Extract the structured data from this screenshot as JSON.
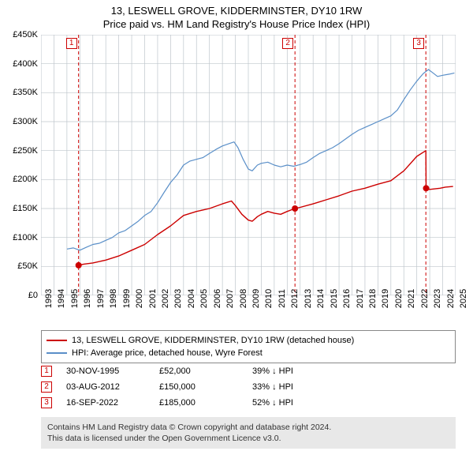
{
  "title": {
    "line1": "13, LESWELL GROVE, KIDDERMINSTER, DY10 1RW",
    "line2": "Price paid vs. HM Land Registry's House Price Index (HPI)",
    "fontsize": 13,
    "color": "#000000"
  },
  "chart": {
    "type": "line",
    "background_color": "#ffffff",
    "grid_color": "#bfc6cc",
    "axis_color": "#000000",
    "tick_fontsize": 11,
    "x": {
      "min": 1993,
      "max": 2025,
      "step": 1
    },
    "y": {
      "min": 0,
      "max": 450000,
      "step": 50000,
      "prefix": "£",
      "suffix_k": "K"
    },
    "markers_on_plot": [
      {
        "n": "1",
        "year": 1995.9,
        "color": "#cc0000"
      },
      {
        "n": "2",
        "year": 2012.6,
        "color": "#cc0000"
      },
      {
        "n": "3",
        "year": 2022.7,
        "color": "#cc0000"
      }
    ],
    "vlines": [
      {
        "year": 1995.9,
        "color": "#cc0000",
        "dash": "4,3",
        "width": 1
      },
      {
        "year": 2012.6,
        "color": "#cc0000",
        "dash": "4,3",
        "width": 1
      },
      {
        "year": 2022.7,
        "color": "#cc0000",
        "dash": "4,3",
        "width": 1
      }
    ],
    "series": [
      {
        "name": "13, LESWELL GROVE, KIDDERMINSTER, DY10 1RW (detached house)",
        "color": "#cc0000",
        "width": 1.4,
        "points": [
          [
            1995.9,
            52000
          ],
          [
            1996.3,
            54000
          ],
          [
            1997,
            56000
          ],
          [
            1998,
            61000
          ],
          [
            1999,
            68000
          ],
          [
            2000,
            78000
          ],
          [
            2001,
            88000
          ],
          [
            2002,
            105000
          ],
          [
            2003,
            120000
          ],
          [
            2004,
            138000
          ],
          [
            2005,
            145000
          ],
          [
            2006,
            150000
          ],
          [
            2007,
            158000
          ],
          [
            2007.7,
            163000
          ],
          [
            2008,
            155000
          ],
          [
            2008.5,
            140000
          ],
          [
            2009,
            130000
          ],
          [
            2009.3,
            128000
          ],
          [
            2009.7,
            136000
          ],
          [
            2010,
            140000
          ],
          [
            2010.5,
            145000
          ],
          [
            2011,
            142000
          ],
          [
            2011.5,
            140000
          ],
          [
            2012,
            145000
          ],
          [
            2012.6,
            150000
          ],
          [
            2013,
            152000
          ],
          [
            2014,
            158000
          ],
          [
            2015,
            165000
          ],
          [
            2016,
            172000
          ],
          [
            2017,
            180000
          ],
          [
            2018,
            185000
          ],
          [
            2019,
            192000
          ],
          [
            2020,
            198000
          ],
          [
            2021,
            215000
          ],
          [
            2022,
            240000
          ],
          [
            2022.7,
            250000
          ],
          [
            2022.72,
            185000
          ],
          [
            2023,
            183000
          ],
          [
            2023.8,
            185000
          ],
          [
            2024.2,
            187000
          ],
          [
            2024.8,
            188000
          ]
        ],
        "dots": [
          {
            "year": 1995.9,
            "value": 52000
          },
          {
            "year": 2012.6,
            "value": 150000
          },
          {
            "year": 2022.72,
            "value": 185000
          }
        ],
        "dot_radius": 4
      },
      {
        "name": "HPI: Average price, detached house, Wyre Forest",
        "color": "#5a8fc8",
        "width": 1.2,
        "points": [
          [
            1995,
            80000
          ],
          [
            1995.5,
            82000
          ],
          [
            1996,
            78000
          ],
          [
            1996.5,
            83000
          ],
          [
            1997,
            88000
          ],
          [
            1997.5,
            90000
          ],
          [
            1998,
            95000
          ],
          [
            1998.5,
            100000
          ],
          [
            1999,
            108000
          ],
          [
            1999.5,
            112000
          ],
          [
            2000,
            120000
          ],
          [
            2000.5,
            128000
          ],
          [
            2001,
            138000
          ],
          [
            2001.5,
            145000
          ],
          [
            2002,
            160000
          ],
          [
            2002.5,
            178000
          ],
          [
            2003,
            195000
          ],
          [
            2003.5,
            208000
          ],
          [
            2004,
            225000
          ],
          [
            2004.5,
            232000
          ],
          [
            2005,
            235000
          ],
          [
            2005.5,
            238000
          ],
          [
            2006,
            245000
          ],
          [
            2006.5,
            252000
          ],
          [
            2007,
            258000
          ],
          [
            2007.5,
            262000
          ],
          [
            2007.9,
            265000
          ],
          [
            2008.2,
            255000
          ],
          [
            2008.6,
            235000
          ],
          [
            2009,
            218000
          ],
          [
            2009.3,
            215000
          ],
          [
            2009.7,
            225000
          ],
          [
            2010,
            228000
          ],
          [
            2010.5,
            230000
          ],
          [
            2011,
            225000
          ],
          [
            2011.5,
            222000
          ],
          [
            2012,
            225000
          ],
          [
            2012.5,
            223000
          ],
          [
            2013,
            226000
          ],
          [
            2013.5,
            230000
          ],
          [
            2014,
            238000
          ],
          [
            2014.5,
            245000
          ],
          [
            2015,
            250000
          ],
          [
            2015.5,
            255000
          ],
          [
            2016,
            262000
          ],
          [
            2016.5,
            270000
          ],
          [
            2017,
            278000
          ],
          [
            2017.5,
            285000
          ],
          [
            2018,
            290000
          ],
          [
            2018.5,
            295000
          ],
          [
            2019,
            300000
          ],
          [
            2019.5,
            305000
          ],
          [
            2020,
            310000
          ],
          [
            2020.5,
            320000
          ],
          [
            2021,
            338000
          ],
          [
            2021.5,
            355000
          ],
          [
            2022,
            370000
          ],
          [
            2022.5,
            383000
          ],
          [
            2022.9,
            390000
          ],
          [
            2023.2,
            385000
          ],
          [
            2023.6,
            378000
          ],
          [
            2024,
            380000
          ],
          [
            2024.5,
            382000
          ],
          [
            2024.9,
            384000
          ]
        ]
      }
    ]
  },
  "legend": {
    "border_color": "#888888",
    "fontsize": 11,
    "items": [
      {
        "color": "#cc0000",
        "label": "13, LESWELL GROVE, KIDDERMINSTER, DY10 1RW (detached house)"
      },
      {
        "color": "#5a8fc8",
        "label": "HPI: Average price, detached house, Wyre Forest"
      }
    ]
  },
  "events": {
    "marker_border": "#cc0000",
    "fontsize": 11,
    "rows": [
      {
        "n": "1",
        "date": "30-NOV-1995",
        "price": "£52,000",
        "pct": "39% ↓ HPI"
      },
      {
        "n": "2",
        "date": "03-AUG-2012",
        "price": "£150,000",
        "pct": "33% ↓ HPI"
      },
      {
        "n": "3",
        "date": "16-SEP-2022",
        "price": "£185,000",
        "pct": "52% ↓ HPI"
      }
    ]
  },
  "footer": {
    "bg": "#e8e8e8",
    "fontsize": 10.5,
    "line1": "Contains HM Land Registry data © Crown copyright and database right 2024.",
    "line2": "This data is licensed under the Open Government Licence v3.0."
  }
}
